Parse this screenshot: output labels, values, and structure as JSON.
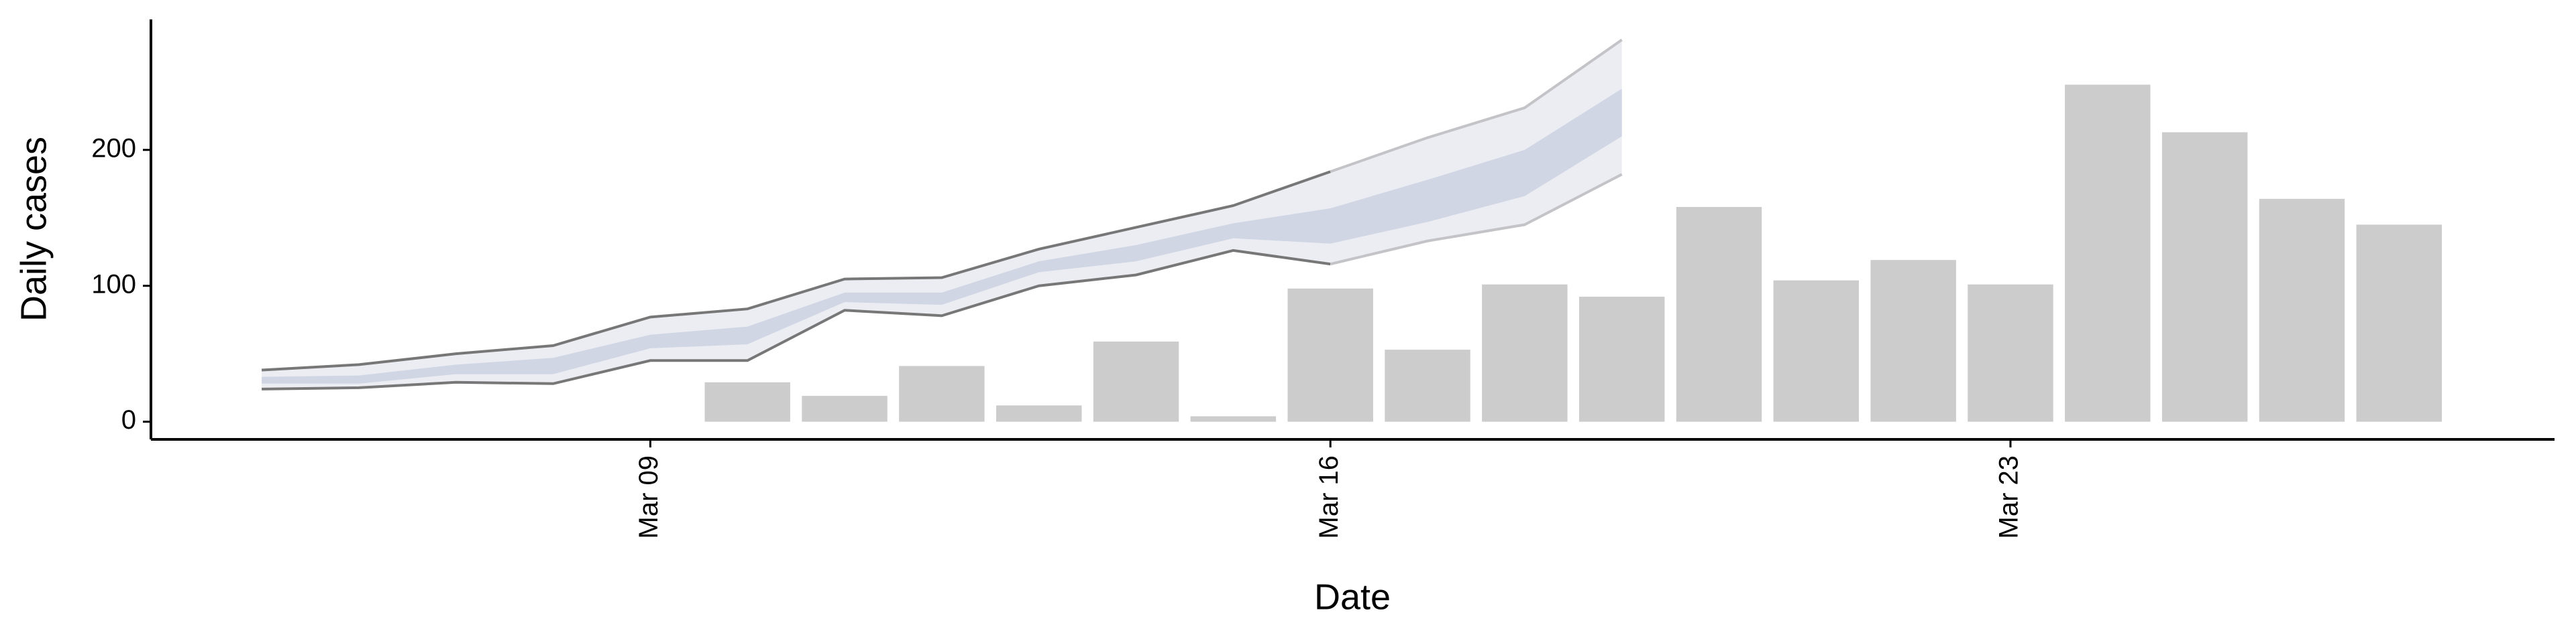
{
  "chart_data": {
    "type": "bar",
    "xlabel": "Date",
    "ylabel": "Daily cases",
    "xlim": [
      3.86,
      28.6
    ],
    "xticks": [
      {
        "value": 9,
        "label": "Mar 09"
      },
      {
        "value": 16,
        "label": "Mar 16"
      },
      {
        "value": 23,
        "label": "Mar 23"
      }
    ],
    "ylim": [
      -13,
      296
    ],
    "yticks": [
      0,
      100,
      200
    ],
    "x": [
      10,
      11,
      12,
      13,
      14,
      15,
      16,
      17,
      18,
      19,
      20,
      21,
      22,
      23,
      24,
      25,
      26,
      27
    ],
    "values": [
      29,
      19,
      41,
      12,
      59,
      4,
      98,
      53,
      101,
      92,
      158,
      104,
      119,
      101,
      248,
      213,
      164,
      145
    ],
    "color": "#cccccc",
    "forecast": {
      "x": [
        5,
        6,
        7,
        8,
        9,
        10,
        11,
        12,
        13,
        14,
        15,
        16,
        17,
        18,
        19
      ],
      "upper_outer": [
        38,
        42,
        50,
        56,
        77,
        83,
        105,
        106,
        127,
        143,
        159,
        184,
        209,
        231,
        281
      ],
      "lower_outer": [
        24,
        25,
        29,
        28,
        45,
        45,
        82,
        78,
        100,
        108,
        126,
        116,
        133,
        145,
        182
      ],
      "upper_inner": [
        33,
        34,
        42,
        47,
        64,
        70,
        95,
        95,
        118,
        130,
        146,
        157,
        178,
        200,
        245
      ],
      "lower_inner": [
        28,
        28,
        35,
        35,
        54,
        57,
        88,
        86,
        110,
        118,
        135,
        131,
        147,
        166,
        210
      ],
      "outer_color": "#ecedf3",
      "inner_color": "#d0d6e4",
      "line_color": "#777777",
      "line_color_after": "#c4c4c8",
      "observed_until": 16
    }
  }
}
